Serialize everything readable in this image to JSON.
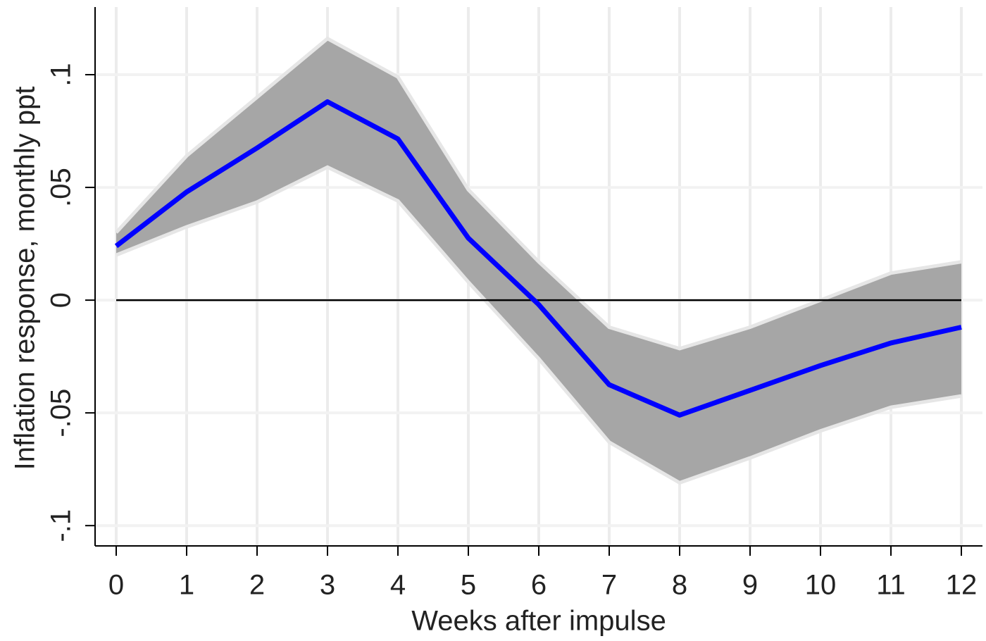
{
  "chart_data": {
    "type": "line",
    "xlabel": "Weeks after impulse",
    "ylabel": "Inflation response, monthly ppt",
    "x": [
      0,
      1,
      2,
      3,
      4,
      5,
      6,
      7,
      8,
      9,
      10,
      11,
      12
    ],
    "line": {
      "color": "#0000ff",
      "values": [
        0.024,
        0.048,
        0.0675,
        0.088,
        0.0715,
        0.0275,
        -0.002,
        -0.0375,
        -0.051,
        -0.04,
        -0.029,
        -0.019,
        -0.012
      ]
    },
    "band": {
      "color": "#a6a6a6",
      "upper": [
        0.03,
        0.064,
        0.09,
        0.116,
        0.099,
        0.049,
        0.017,
        -0.012,
        -0.0215,
        -0.012,
        0,
        0.012,
        0.017
      ],
      "lower": [
        0.02,
        0.0325,
        0.0435,
        0.059,
        0.044,
        0.008,
        -0.026,
        -0.063,
        -0.081,
        -0.07,
        -0.058,
        -0.0475,
        -0.0425
      ]
    },
    "xlim": [
      -0.3,
      12.3
    ],
    "ylim": [
      -0.109,
      0.13
    ],
    "xticks": [
      0,
      1,
      2,
      3,
      4,
      5,
      6,
      7,
      8,
      9,
      10,
      11,
      12
    ],
    "yticks": [
      {
        "value": -0.1,
        "label": "-.1"
      },
      {
        "value": -0.05,
        "label": "-.05"
      },
      0,
      {
        "value": 0.05,
        "label": ".05"
      },
      {
        "value": 0.1,
        "label": ".1"
      }
    ],
    "grid": true,
    "zero_line": true
  }
}
